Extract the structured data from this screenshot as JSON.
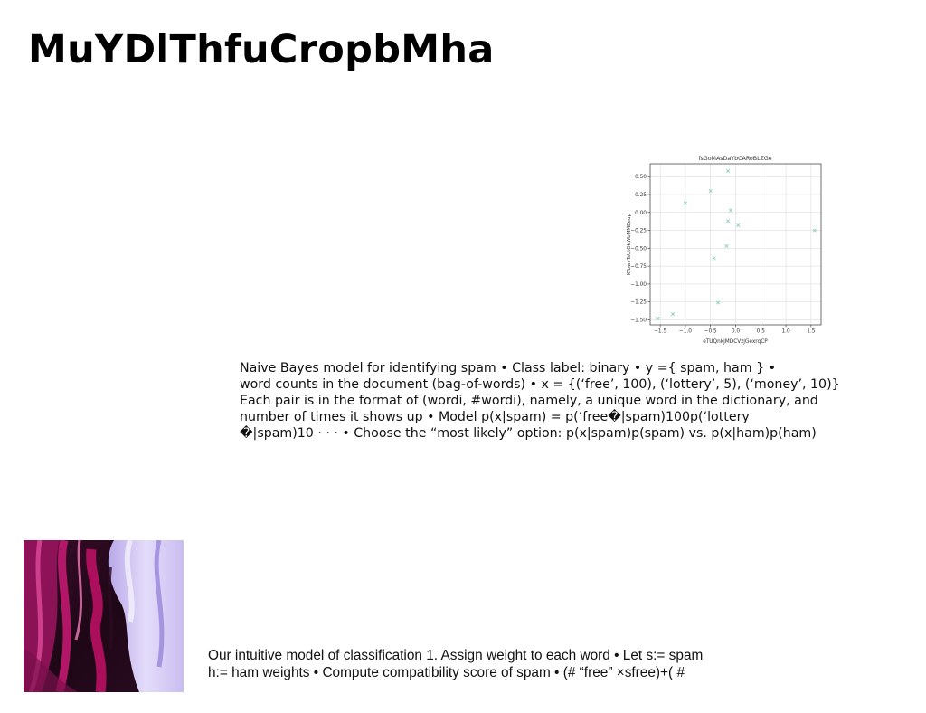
{
  "slide": {
    "title": "MuYDlThfuCropbMha",
    "paragraph_lines": [
      "Naive Bayes model for identifying spam • Class label: binary • y ={ spam, ham } •",
      "word counts in the document (bag-of-words) • x = {(‘free’, 100), (‘lottery’, 5), (‘money’, 10)}",
      "Each pair is in the format of (wordi, #wordi), namely, a unique word in the dictionary, and",
      "number of times it shows up • Model p(x|spam) = p(‘free�|spam)100p(‘lottery",
      "�|spam)10 · · · • Choose the “most likely” option: p(x|spam)p(spam) vs. p(x|ham)p(ham)"
    ],
    "bottom_lines": [
      "Our intuitive model of classification 1. Assign weight to each word • Let s:= spam",
      "h:= ham weights • Compute compatibility score of spam • (# “free” ×sfree)+( #"
    ]
  },
  "image": {
    "description_icon": "abstract-paint-image"
  },
  "chart_data": {
    "type": "scatter",
    "title": "fsGoMAsDaYbCARoBLZGe",
    "xlabel": "eTUQnkjMDCVzjGexrqCP",
    "ylabel": "KTowvTsUtOkWbMMEeup",
    "xlim": [
      -1.7,
      1.7
    ],
    "ylim": [
      -1.57,
      0.68
    ],
    "xticks": [
      -1.5,
      -1.0,
      -0.5,
      0.0,
      0.5,
      1.0,
      1.5
    ],
    "xtick_labels": [
      "−1.5",
      "−1.0",
      "−0.5",
      "0.0",
      "0.5",
      "1.0",
      "1.5"
    ],
    "yticks": [
      0.5,
      0.25,
      0.0,
      -0.25,
      -0.5,
      -0.75,
      -1.0,
      -1.25,
      -1.5
    ],
    "ytick_labels": [
      "0.50",
      "0.25",
      "0.00",
      "−0.25",
      "−0.50",
      "−0.75",
      "−1.00",
      "−1.25",
      "−1.50"
    ],
    "grid": true,
    "marker": "x",
    "color": "#7fc9bd",
    "series": [
      {
        "x": [
          -0.15,
          -0.5,
          -1.0,
          -0.1,
          -0.15,
          0.05,
          1.57,
          -0.18,
          -0.43,
          -0.35,
          -1.25,
          -1.55
        ],
        "y": [
          0.58,
          0.3,
          0.13,
          0.03,
          -0.12,
          -0.18,
          -0.25,
          -0.47,
          -0.64,
          -1.26,
          -1.42,
          -1.48
        ]
      }
    ]
  }
}
